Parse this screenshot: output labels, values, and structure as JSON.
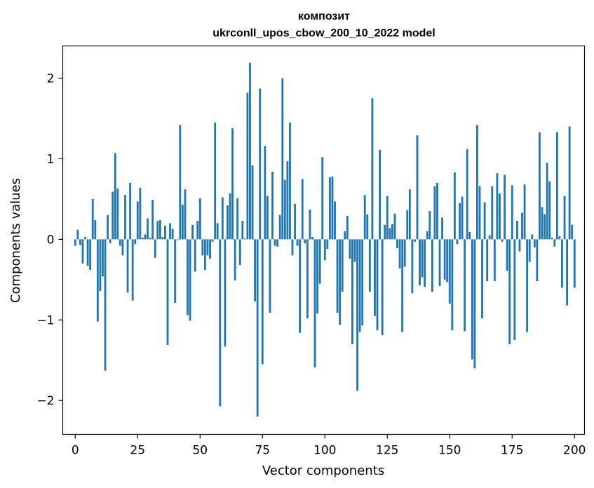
{
  "chart_data": {
    "type": "bar",
    "title_line1": "композит",
    "title_line2": "ukrconll_upos_cbow_200_10_2022 model",
    "xlabel": "Vector components",
    "ylabel": "Components values",
    "xlim": [
      -5,
      204
    ],
    "ylim": [
      -2.42,
      2.4
    ],
    "x_ticks": [
      0,
      25,
      50,
      75,
      100,
      125,
      150,
      175,
      200
    ],
    "x_tick_labels": [
      "0",
      "25",
      "50",
      "75",
      "100",
      "125",
      "150",
      "175",
      "200"
    ],
    "y_ticks": [
      -2,
      -1,
      0,
      1,
      2
    ],
    "y_tick_labels": [
      "−2",
      "−1",
      "0",
      "1",
      "2"
    ],
    "bar_color": "#1f77b4",
    "grid": false,
    "values": [
      -0.08,
      0.12,
      -0.07,
      -0.3,
      0.03,
      -0.33,
      -0.38,
      0.5,
      0.24,
      -1.02,
      -0.64,
      -0.46,
      -1.63,
      0.3,
      -0.05,
      0.59,
      1.07,
      0.63,
      -0.08,
      -0.2,
      0.55,
      -0.66,
      0.7,
      -0.76,
      -0.06,
      0.47,
      0.64,
      0.02,
      0.06,
      0.26,
      0.02,
      0.49,
      -0.23,
      0.23,
      0.24,
      0.03,
      0.17,
      -1.31,
      0.2,
      0.13,
      -0.79,
      -0.01,
      1.42,
      0.43,
      0.62,
      -0.94,
      -1.01,
      0.18,
      -0.4,
      0.23,
      0.51,
      -0.2,
      -0.38,
      -0.2,
      -0.24,
      -0.03,
      1.45,
      0.2,
      -2.07,
      0.52,
      -1.33,
      0.42,
      0.57,
      1.38,
      -0.51,
      0.51,
      -0.32,
      0.23,
      0.01,
      1.82,
      2.19,
      0.92,
      -0.77,
      -2.2,
      1.87,
      -1.55,
      1.16,
      0.54,
      -0.91,
      0.84,
      -0.08,
      -0.09,
      0.3,
      2.0,
      0.74,
      0.97,
      1.45,
      -0.2,
      0.44,
      -0.08,
      -1.16,
      0.75,
      -0.05,
      -0.98,
      0.37,
      0.03,
      -1.59,
      -0.92,
      -0.55,
      1.02,
      -0.26,
      -0.12,
      0.77,
      0.78,
      0.47,
      -0.91,
      -1.06,
      -0.65,
      0.1,
      0.29,
      -0.24,
      -1.3,
      -0.28,
      -1.88,
      -1.15,
      -1.07,
      0.55,
      0.31,
      -0.65,
      1.75,
      -0.95,
      -1.13,
      1.11,
      -1.19,
      0.18,
      0.54,
      0.14,
      0.19,
      0.32,
      -0.11,
      -0.36,
      -1.15,
      -0.34,
      0.36,
      0.62,
      -0.67,
      -0.03,
      1.29,
      -0.57,
      -0.47,
      -0.59,
      0.1,
      0.35,
      -0.65,
      0.66,
      0.7,
      -0.58,
      0.27,
      -0.5,
      -0.53,
      -0.8,
      -1.13,
      0.83,
      -0.06,
      0.45,
      0.53,
      -1.14,
      1.12,
      0.09,
      -1.49,
      -1.6,
      1.42,
      0.66,
      -0.98,
      0.46,
      -0.52,
      0.05,
      0.66,
      -0.52,
      0.82,
      0.57,
      -0.03,
      0.8,
      -0.39,
      -1.3,
      0.67,
      -1.25,
      0.23,
      -0.15,
      0.33,
      0.68,
      -1.15,
      -0.28,
      0.06,
      -0.1,
      -0.52,
      1.33,
      0.4,
      0.31,
      0.95,
      0.72,
      0.02,
      -0.09,
      1.33,
      0.04,
      -0.6,
      0.54,
      -0.82,
      1.4,
      0.18,
      -0.6
    ]
  }
}
